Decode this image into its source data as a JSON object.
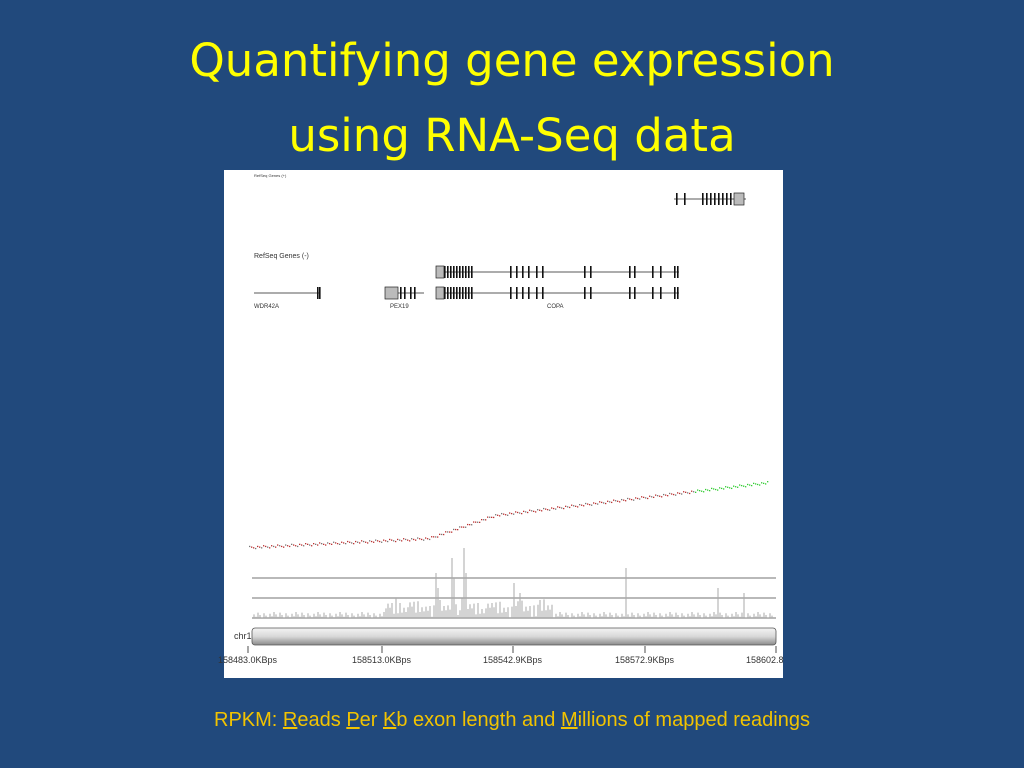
{
  "header": {
    "title": [
      "Quantifying gene expression",
      "using RNA-Seq data"
    ]
  },
  "figure": {
    "tracks": [
      "RefSeq Genes (+)",
      "RefSeq Genes (-)"
    ],
    "genes": [
      "WDR42A",
      "PEX19",
      "COPA"
    ],
    "chromosome": "chr1",
    "axis_labels": [
      "158483.0KBps",
      "158513.0KBps",
      "158542.9KBps",
      "158572.9KBps",
      "158602.8"
    ]
  },
  "footer": {
    "parts": [
      "RPKM: ",
      "R",
      "eads ",
      "P",
      "er ",
      "K",
      "b exon length and ",
      "M",
      "illions of mapped readings"
    ]
  }
}
